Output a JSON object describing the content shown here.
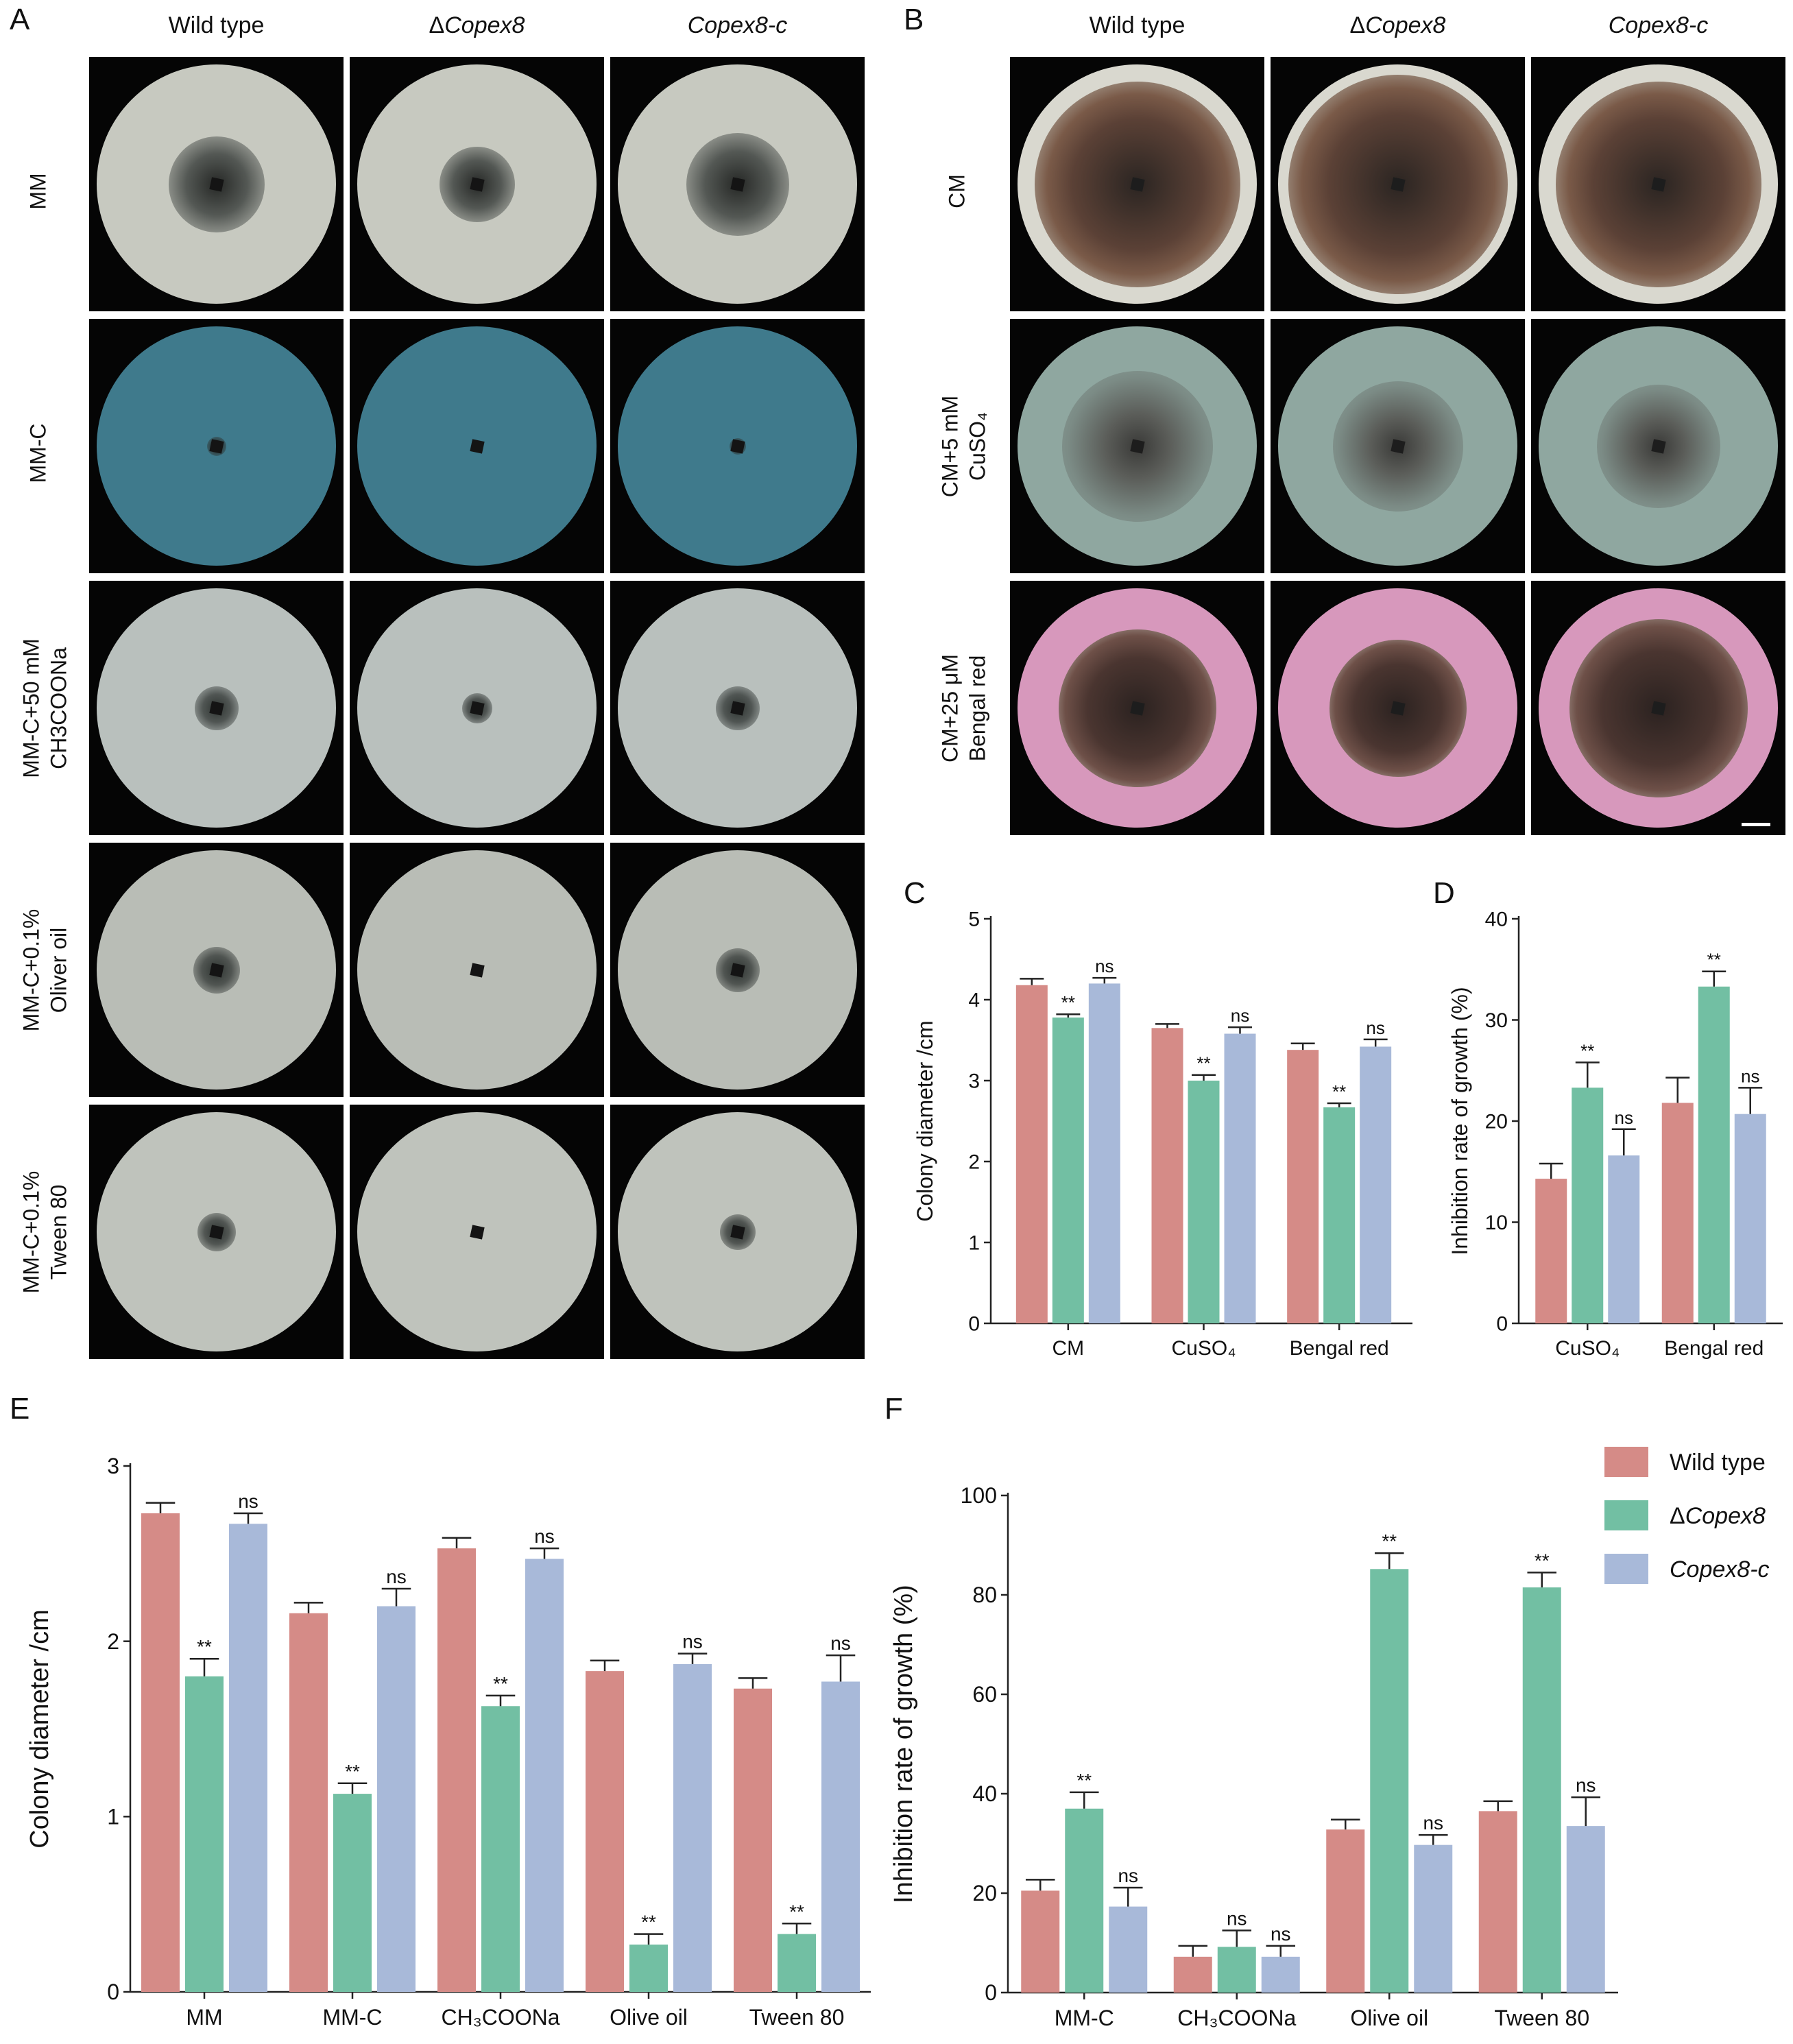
{
  "panels": {
    "A": {
      "letter": "A",
      "columns": [
        "Wild type",
        "ΔCopex8",
        "Copex8-c"
      ],
      "rows": [
        {
          "label1": "MM",
          "label2": ""
        },
        {
          "label1": "MM-C",
          "label2": ""
        },
        {
          "label1": "MM-C+50 mM",
          "label2": "CH3COONa"
        },
        {
          "label1": "MM-C+0.1%",
          "label2": "Oliver oil"
        },
        {
          "label1": "MM-C+0.1%",
          "label2": "Tween 80"
        }
      ]
    },
    "B": {
      "letter": "B",
      "columns": [
        "Wild type",
        "ΔCopex8",
        "Copex8-c"
      ],
      "rows": [
        {
          "label1": "CM",
          "label2": ""
        },
        {
          "label1": "CM+5 mM",
          "label2": "CuSO₄"
        },
        {
          "label1": "CM+25 μM",
          "label2": "Bengal red"
        }
      ]
    },
    "C": {
      "letter": "C"
    },
    "D": {
      "letter": "D"
    },
    "E": {
      "letter": "E"
    },
    "F": {
      "letter": "F"
    }
  },
  "legend": {
    "items": [
      "Wild type",
      "ΔCopex8",
      "Copex8-c"
    ]
  },
  "colors": {
    "wild_type": "#d58b87",
    "delta": "#72bfa3",
    "comp": "#a8b9d9",
    "axis": "#222222"
  },
  "chart_data": [
    {
      "id": "C",
      "type": "bar",
      "title": "",
      "xlabel": "",
      "ylabel": "Colony diameter /cm",
      "ylim": [
        0,
        5
      ],
      "yticks": [
        0,
        1,
        2,
        3,
        4,
        5
      ],
      "categories": [
        "CM",
        "CuSO₄",
        "Bengal red"
      ],
      "series": [
        {
          "name": "Wild type",
          "values": [
            4.18,
            3.65,
            3.38
          ],
          "errors": [
            0.08,
            0.05,
            0.08
          ]
        },
        {
          "name": "ΔCopex8",
          "values": [
            3.78,
            3.0,
            2.67
          ],
          "errors": [
            0.04,
            0.07,
            0.05
          ],
          "annotations": [
            "**",
            "**",
            "**"
          ]
        },
        {
          "name": "Copex8-c",
          "values": [
            4.2,
            3.58,
            3.42
          ],
          "errors": [
            0.07,
            0.08,
            0.09
          ],
          "annotations": [
            "ns",
            "ns",
            "ns"
          ]
        }
      ],
      "grid": false
    },
    {
      "id": "D",
      "type": "bar",
      "title": "",
      "xlabel": "",
      "ylabel": "Inhibition rate of growth (%)",
      "ylim": [
        0,
        40
      ],
      "yticks": [
        0,
        10,
        20,
        30,
        40
      ],
      "categories": [
        "CuSO₄",
        "Bengal red"
      ],
      "series": [
        {
          "name": "Wild type",
          "values": [
            14.3,
            21.8
          ],
          "errors": [
            1.5,
            2.5
          ]
        },
        {
          "name": "ΔCopex8",
          "values": [
            23.3,
            33.3
          ],
          "errors": [
            2.5,
            1.5
          ],
          "annotations": [
            "**",
            "**"
          ]
        },
        {
          "name": "Copex8-c",
          "values": [
            16.6,
            20.7
          ],
          "errors": [
            2.6,
            2.6
          ],
          "annotations": [
            "ns",
            "ns"
          ]
        }
      ],
      "grid": false
    },
    {
      "id": "E",
      "type": "bar",
      "title": "",
      "xlabel": "",
      "ylabel": "Colony diameter /cm",
      "ylim": [
        0,
        3
      ],
      "yticks": [
        0,
        1,
        2,
        3
      ],
      "categories": [
        "MM",
        "MM-C",
        "CH₃COONa",
        "Olive oil",
        "Tween 80"
      ],
      "series": [
        {
          "name": "Wild type",
          "values": [
            2.73,
            2.16,
            2.53,
            1.83,
            1.73
          ],
          "errors": [
            0.06,
            0.06,
            0.06,
            0.06,
            0.06
          ]
        },
        {
          "name": "ΔCopex8",
          "values": [
            1.8,
            1.13,
            1.63,
            0.27,
            0.33
          ],
          "errors": [
            0.1,
            0.06,
            0.06,
            0.06,
            0.06
          ],
          "annotations": [
            "**",
            "**",
            "**",
            "**",
            "**"
          ]
        },
        {
          "name": "Copex8-c",
          "values": [
            2.67,
            2.2,
            2.47,
            1.87,
            1.77
          ],
          "errors": [
            0.06,
            0.1,
            0.06,
            0.06,
            0.15
          ],
          "annotations": [
            "ns",
            "ns",
            "ns",
            "ns",
            "ns"
          ]
        }
      ],
      "grid": false
    },
    {
      "id": "F",
      "type": "bar",
      "title": "",
      "xlabel": "",
      "ylabel": "Inhibition rate of growth (%)",
      "ylim": [
        0,
        100
      ],
      "yticks": [
        0,
        20,
        40,
        60,
        80,
        100
      ],
      "categories": [
        "MM-C",
        "CH₃COONa",
        "Olive oil",
        "Tween 80"
      ],
      "series": [
        {
          "name": "Wild type",
          "values": [
            20.5,
            7.2,
            32.8,
            36.5
          ],
          "errors": [
            2.2,
            2.2,
            2.0,
            2.0
          ]
        },
        {
          "name": "ΔCopex8",
          "values": [
            37.0,
            9.2,
            85.2,
            81.5
          ],
          "errors": [
            3.3,
            3.3,
            3.2,
            3.0
          ],
          "annotations": [
            "**",
            "ns",
            "**",
            "**"
          ]
        },
        {
          "name": "Copex8-c",
          "values": [
            17.3,
            7.2,
            29.7,
            33.5
          ],
          "errors": [
            3.8,
            2.2,
            2.0,
            5.8
          ],
          "annotations": [
            "ns",
            "ns",
            "ns",
            "ns"
          ]
        }
      ],
      "legend": "top-right",
      "grid": false
    }
  ]
}
